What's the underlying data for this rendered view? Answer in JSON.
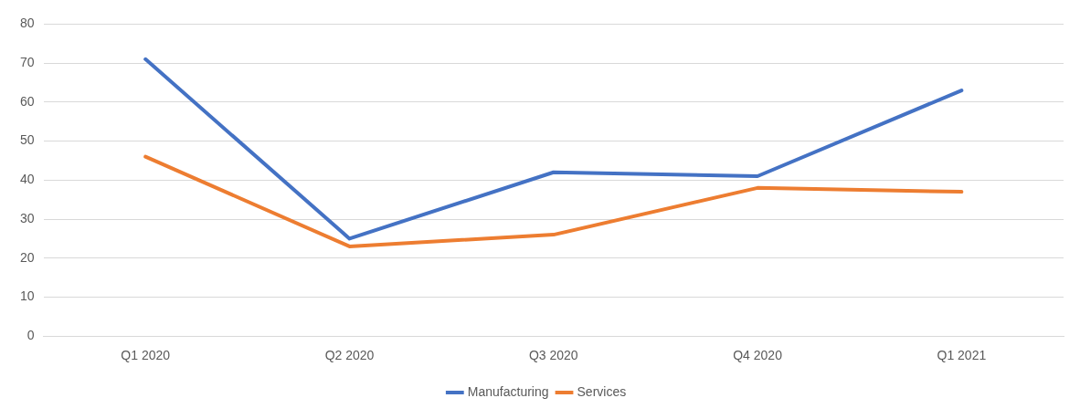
{
  "chart_data": {
    "type": "line",
    "categories": [
      "Q1 2020",
      "Q2 2020",
      "Q3 2020",
      "Q4 2020",
      "Q1 2021"
    ],
    "series": [
      {
        "name": "Manufacturing",
        "color": "#4472c4",
        "values": [
          71,
          25,
          42,
          41,
          63
        ]
      },
      {
        "name": "Services",
        "color": "#ed7d31",
        "values": [
          46,
          23,
          26,
          38,
          37
        ]
      }
    ],
    "ylim": [
      0,
      80
    ],
    "yticks": [
      0,
      10,
      20,
      30,
      40,
      50,
      60,
      70,
      80
    ],
    "grid": "y",
    "legend": "bottom",
    "marker": "none"
  }
}
